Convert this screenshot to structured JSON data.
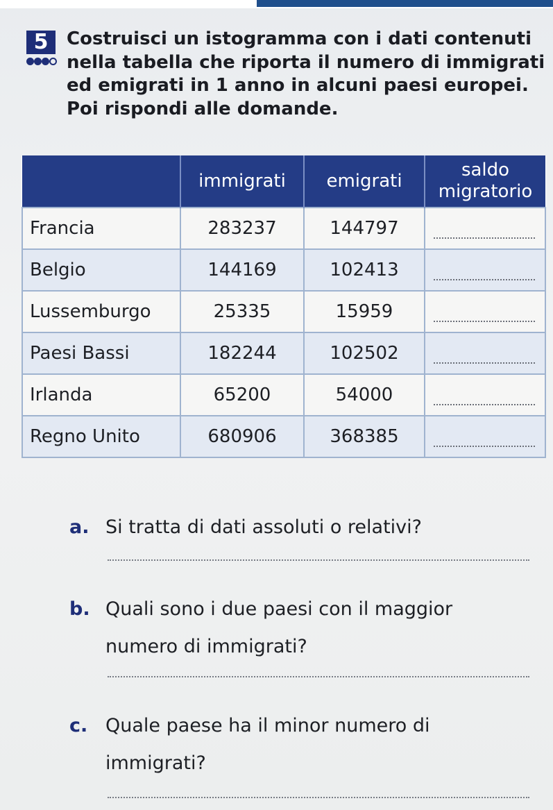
{
  "exercise": {
    "number": "5",
    "difficulty": {
      "filled": 3,
      "total": 4
    },
    "instructions": [
      "Costruisci un istogramma con i dati contenuti",
      "nella tabella che riporta il numero di immigrati",
      "ed emigrati in 1 anno in alcuni paesi europei.",
      "Poi rispondi alle domande."
    ]
  },
  "table": {
    "headers": [
      "",
      "immigrati",
      "emigrati",
      "saldo migratorio"
    ],
    "header_lines": {
      "saldo_1": "saldo",
      "saldo_2": "migratorio"
    },
    "rows": [
      {
        "country": "Francia",
        "immigrati": "283237",
        "emigrati": "144797"
      },
      {
        "country": "Belgio",
        "immigrati": "144169",
        "emigrati": "102413"
      },
      {
        "country": "Lussemburgo",
        "immigrati": "25335",
        "emigrati": "15959"
      },
      {
        "country": "Paesi Bassi",
        "immigrati": "182244",
        "emigrati": "102502"
      },
      {
        "country": "Irlanda",
        "immigrati": "65200",
        "emigrati": "54000"
      },
      {
        "country": "Regno Unito",
        "immigrati": "680906",
        "emigrati": "368385"
      }
    ]
  },
  "questions": [
    {
      "letter": "a.",
      "lines": [
        "Si tratta di dati assoluti o relativi?"
      ]
    },
    {
      "letter": "b.",
      "lines": [
        "Quali sono i due paesi con il maggior",
        "numero di immigrati?"
      ]
    },
    {
      "letter": "c.",
      "lines": [
        "Quale paese ha il minor numero di",
        "immigrati?"
      ]
    }
  ],
  "colors": {
    "header_blue": "#243c86",
    "accent_navy": "#1e2e78",
    "row_alt": "#e3e9f3",
    "grid": "#9fb3cf"
  }
}
